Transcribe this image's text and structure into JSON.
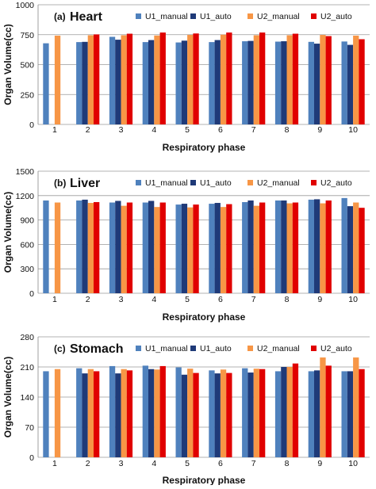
{
  "chart_data": [
    {
      "type": "bar",
      "title_label": "(a)",
      "title": "Heart",
      "xlabel": "Respiratory phase",
      "ylabel": "Organ Volume(cc)",
      "ylim": [
        0,
        1000
      ],
      "yticks": [
        "0",
        "250",
        "500",
        "750",
        "1000"
      ],
      "categories": [
        "1",
        "2",
        "3",
        "4",
        "5",
        "6",
        "7",
        "8",
        "9",
        "10"
      ],
      "legend_position": "top-right",
      "series": [
        {
          "name": "U1_manual",
          "color": "#4f81bd",
          "values": [
            678,
            688,
            732,
            688,
            685,
            688,
            695,
            692,
            690,
            693
          ]
        },
        {
          "name": "U1_auto",
          "color": "#1f3a78",
          "values": [
            null,
            690,
            708,
            705,
            700,
            705,
            698,
            695,
            675,
            665
          ]
        },
        {
          "name": "U2_manual",
          "color": "#f79646",
          "values": [
            742,
            745,
            745,
            743,
            748,
            750,
            745,
            745,
            748,
            742
          ]
        },
        {
          "name": "U2_auto",
          "color": "#e00000",
          "values": [
            null,
            752,
            758,
            768,
            760,
            768,
            768,
            758,
            738,
            712
          ]
        }
      ]
    },
    {
      "type": "bar",
      "title_label": "(b)",
      "title": "Liver",
      "xlabel": "Respiratory phase",
      "ylabel": "Organ Volume(cc)",
      "ylim": [
        0,
        1500
      ],
      "yticks": [
        "0",
        "300",
        "600",
        "900",
        "1200",
        "1500"
      ],
      "categories": [
        "1",
        "2",
        "3",
        "4",
        "5",
        "6",
        "7",
        "8",
        "9",
        "10"
      ],
      "legend_position": "top-right",
      "series": [
        {
          "name": "U1_manual",
          "color": "#4f81bd",
          "values": [
            1140,
            1140,
            1115,
            1115,
            1090,
            1100,
            1120,
            1140,
            1150,
            1170
          ]
        },
        {
          "name": "U1_auto",
          "color": "#1f3a78",
          "values": [
            null,
            1150,
            1135,
            1135,
            1100,
            1110,
            1140,
            1140,
            1155,
            1070
          ]
        },
        {
          "name": "U2_manual",
          "color": "#f79646",
          "values": [
            1115,
            1110,
            1075,
            1060,
            1055,
            1060,
            1075,
            1105,
            1105,
            1115
          ]
        },
        {
          "name": "U2_auto",
          "color": "#e00000",
          "values": [
            null,
            1120,
            1115,
            1115,
            1090,
            1095,
            1115,
            1115,
            1140,
            1050
          ]
        }
      ]
    },
    {
      "type": "bar",
      "title_label": "(c)",
      "title": "Stomach",
      "xlabel": "Respiratory phase",
      "ylabel": "Organ Volume(cc)",
      "ylim": [
        0,
        280
      ],
      "yticks": [
        "0",
        "70",
        "140",
        "210",
        "280"
      ],
      "categories": [
        "1",
        "2",
        "3",
        "4",
        "5",
        "6",
        "7",
        "8",
        "9",
        "10"
      ],
      "legend_position": "top-right",
      "series": [
        {
          "name": "U1_manual",
          "color": "#4f81bd",
          "values": [
            200,
            207,
            212,
            213,
            209,
            202,
            207,
            200,
            200,
            200
          ]
        },
        {
          "name": "U1_auto",
          "color": "#1f3a78",
          "values": [
            null,
            195,
            195,
            205,
            192,
            195,
            197,
            210,
            202,
            200
          ]
        },
        {
          "name": "U2_manual",
          "color": "#f79646",
          "values": [
            205,
            205,
            205,
            204,
            206,
            204,
            206,
            210,
            232,
            232
          ]
        },
        {
          "name": "U2_auto",
          "color": "#e00000",
          "values": [
            null,
            200,
            202,
            212,
            196,
            196,
            205,
            218,
            213,
            205
          ]
        }
      ]
    }
  ]
}
